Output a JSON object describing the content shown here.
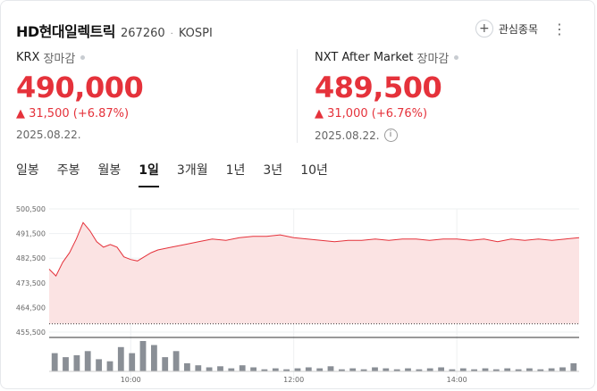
{
  "header": {
    "name": "HD현대일렉트릭",
    "code": "267260",
    "separator": "·",
    "market": "KOSPI",
    "favorite_label": "관심종목",
    "favorite_icon": "plus-circle-icon",
    "more_icon": "vertical-ellipsis-icon"
  },
  "krx": {
    "label": "KRX",
    "status": "장마감",
    "price": "490,000",
    "change": "▲ 31,500 (+6.87%)",
    "date": "2025.08.22."
  },
  "nxt": {
    "label": "NXT After Market",
    "status": "장마감",
    "price": "489,500",
    "change": "▲ 31,000 (+6.76%)",
    "date": "2025.08.22.",
    "info_icon": "info-circle-icon"
  },
  "tabs": [
    "일봉",
    "주봉",
    "월봉",
    "1일",
    "3개월",
    "1년",
    "3년",
    "10년"
  ],
  "active_tab": "1일",
  "colors": {
    "up": "#e5323b",
    "area": "#fbe3e3"
  },
  "chart_data": {
    "type": "area",
    "yticks": [
      "500,500",
      "491,500",
      "482,500",
      "473,500",
      "464,500",
      "455,500"
    ],
    "ylim": [
      455500,
      500500
    ],
    "xticks": [
      "10:00",
      "12:00",
      "14:00"
    ],
    "x": [
      "09:00",
      "09:05",
      "09:10",
      "09:15",
      "09:20",
      "09:25",
      "09:30",
      "09:35",
      "09:40",
      "09:45",
      "09:50",
      "09:55",
      "10:00",
      "10:05",
      "10:10",
      "10:15",
      "10:20",
      "10:30",
      "10:40",
      "10:50",
      "11:00",
      "11:10",
      "11:20",
      "11:30",
      "11:40",
      "11:50",
      "12:00",
      "12:10",
      "12:20",
      "12:30",
      "12:40",
      "12:50",
      "13:00",
      "13:10",
      "13:20",
      "13:30",
      "13:40",
      "13:50",
      "14:00",
      "14:10",
      "14:20",
      "14:30",
      "14:40",
      "14:50",
      "15:00",
      "15:10",
      "15:20",
      "15:30"
    ],
    "series": [
      {
        "values": [
          478500,
          476000,
          481000,
          484500,
          489500,
          495500,
          492500,
          488500,
          486500,
          487500,
          486500,
          483000,
          482000,
          481500,
          483000,
          484500,
          485500,
          486500,
          487500,
          488500,
          489500,
          489000,
          490000,
          490500,
          490500,
          491000,
          490000,
          489500,
          489000,
          488500,
          489000,
          489000,
          489500,
          489000,
          489500,
          489500,
          489000,
          489500,
          489500,
          489000,
          489500,
          488500,
          489500,
          489000,
          489500,
          489000,
          489500,
          490000
        ]
      }
    ],
    "prev_close": 458500,
    "volume": [
      18,
      14,
      16,
      20,
      12,
      10,
      24,
      18,
      30,
      26,
      14,
      20,
      8,
      6,
      4,
      5,
      3,
      6,
      4,
      2,
      3,
      2,
      3,
      4,
      3,
      5,
      2,
      3,
      2,
      4,
      3,
      2,
      3,
      2,
      3,
      4,
      2,
      3,
      2,
      3,
      2,
      3,
      2,
      3,
      2,
      3,
      4,
      8
    ]
  }
}
